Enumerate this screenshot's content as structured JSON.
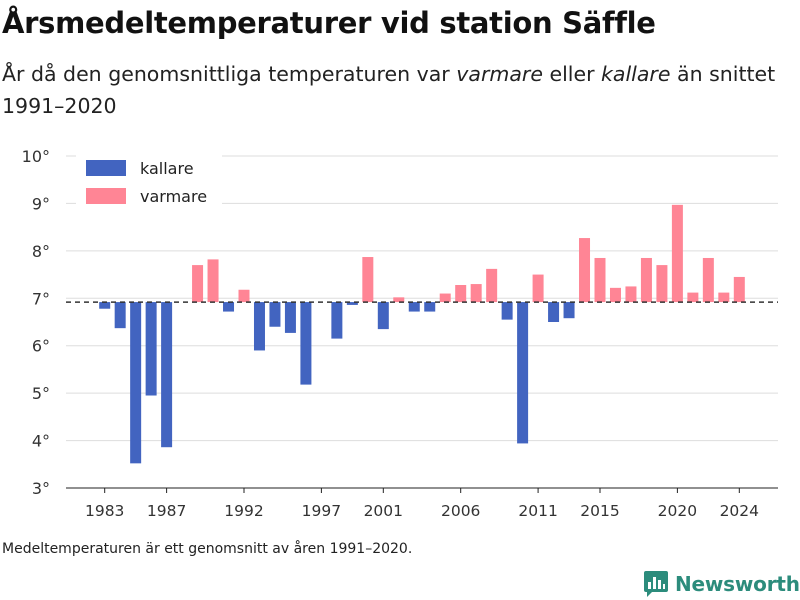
{
  "header": {
    "title": "Årsmedeltemperaturer vid station Säffle",
    "subtitle_part1": "År då den genomsnittliga temperaturen var ",
    "subtitle_em1": "varmare",
    "subtitle_part2": " eller ",
    "subtitle_em2": "kallare",
    "subtitle_part3": " än snittet 1991–2020"
  },
  "footnote": "Medeltemperaturen är ett genomsnitt av åren 1991–2020.",
  "brand": {
    "name": "Newsworthy",
    "icon": "bar-chart-logo-icon",
    "color": "#2c8c7c"
  },
  "chart_data": {
    "type": "bar",
    "baseline": 6.92,
    "ylim": [
      3,
      10
    ],
    "xlim": [
      1980.5,
      2026.5
    ],
    "yticks": [
      3,
      4,
      5,
      6,
      7,
      8,
      9,
      10
    ],
    "ytick_labels": [
      "3°",
      "4°",
      "5°",
      "6°",
      "7°",
      "8°",
      "9°",
      "10°"
    ],
    "xticks": [
      1983,
      1987,
      1992,
      1997,
      2001,
      2006,
      2011,
      2015,
      2020,
      2024
    ],
    "xtick_labels": [
      "1983",
      "1987",
      "1992",
      "1997",
      "2001",
      "2006",
      "2011",
      "2015",
      "2020",
      "2024"
    ],
    "grid": true,
    "legend_placement": "top-left",
    "colors": {
      "kallare": "#4264c0",
      "varmare": "#ff8595",
      "baseline": "#333333",
      "grid": "#dddddd"
    },
    "legend": [
      {
        "key": "kallare",
        "label": "kallare"
      },
      {
        "key": "varmare",
        "label": "varmare"
      }
    ],
    "years": [
      1983,
      1984,
      1985,
      1986,
      1987,
      1989,
      1990,
      1991,
      1992,
      1993,
      1994,
      1995,
      1996,
      1998,
      1999,
      2000,
      2001,
      2002,
      2003,
      2004,
      2005,
      2006,
      2007,
      2008,
      2009,
      2010,
      2011,
      2012,
      2013,
      2014,
      2015,
      2016,
      2017,
      2018,
      2019,
      2020,
      2021,
      2022,
      2023,
      2024
    ],
    "values": [
      6.78,
      6.37,
      3.52,
      4.95,
      3.86,
      7.7,
      7.82,
      6.72,
      7.18,
      5.9,
      6.4,
      6.27,
      5.18,
      6.15,
      6.86,
      7.87,
      6.35,
      7.02,
      6.72,
      6.72,
      7.1,
      7.28,
      7.3,
      7.62,
      6.55,
      3.94,
      7.5,
      6.5,
      6.58,
      8.27,
      7.85,
      7.22,
      7.25,
      7.85,
      7.7,
      8.97,
      7.12,
      7.85,
      7.12,
      7.45
    ]
  }
}
